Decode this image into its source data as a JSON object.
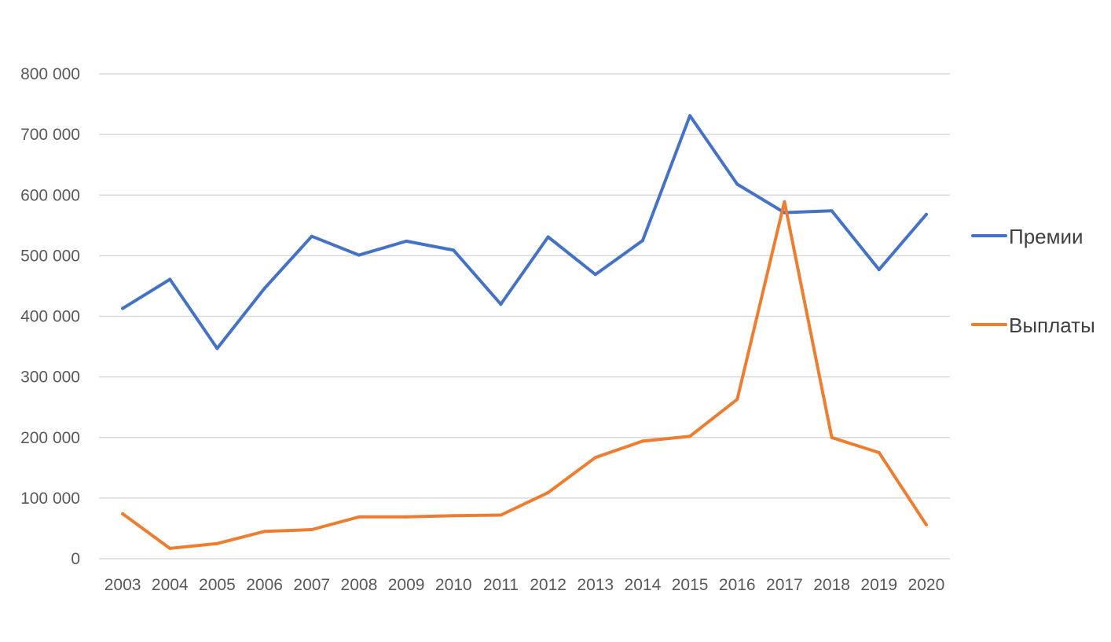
{
  "chart_data": {
    "type": "line",
    "title": "",
    "xlabel": "",
    "ylabel": "",
    "x": [
      "2003",
      "2004",
      "2005",
      "2006",
      "2007",
      "2008",
      "2009",
      "2010",
      "2011",
      "2012",
      "2013",
      "2014",
      "2015",
      "2016",
      "2017",
      "2018",
      "2019",
      "2020"
    ],
    "ylim": [
      0,
      800000
    ],
    "yticks": [
      0,
      100000,
      200000,
      300000,
      400000,
      500000,
      600000,
      700000,
      800000
    ],
    "ytick_labels": [
      "0",
      "100 000",
      "200 000",
      "300 000",
      "400 000",
      "500 000",
      "600 000",
      "700 000",
      "800 000"
    ],
    "grid": true,
    "legend_position": "right",
    "series": [
      {
        "name": "Премии",
        "color": "#4472c4",
        "values": [
          413000,
          461000,
          347000,
          446000,
          532000,
          501000,
          524000,
          509000,
          420000,
          531000,
          469000,
          525000,
          731000,
          618000,
          571000,
          574000,
          477000,
          568000
        ]
      },
      {
        "name": "Выплаты",
        "color": "#ed7d31",
        "values": [
          74000,
          17000,
          25000,
          45000,
          48000,
          69000,
          69000,
          71000,
          72000,
          109000,
          167000,
          194000,
          202000,
          263000,
          589000,
          200000,
          175000,
          56000
        ]
      }
    ]
  }
}
